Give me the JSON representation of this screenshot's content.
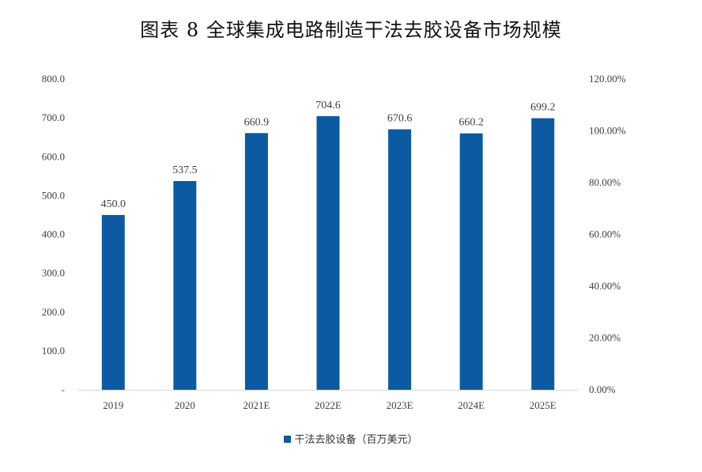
{
  "chart_data": {
    "type": "bar",
    "title": "图表 8  全球集成电路制造干法去胶设备市场规模",
    "categories": [
      "2019",
      "2020",
      "2021E",
      "2022E",
      "2023E",
      "2024E",
      "2025E"
    ],
    "series": [
      {
        "name": "干法去胶设备（百万美元）",
        "values": [
          450.0,
          537.5,
          660.9,
          704.6,
          670.6,
          660.2,
          699.2
        ],
        "color": "#0b5aa2"
      }
    ],
    "data_labels": [
      "450.0",
      "537.5",
      "660.9",
      "704.6",
      "670.6",
      "660.2",
      "699.2"
    ],
    "y_left": {
      "ylim": [
        0,
        800
      ],
      "ticks": [
        0,
        100,
        200,
        300,
        400,
        500,
        600,
        700,
        800
      ],
      "tick_labels": [
        "-",
        "100.0",
        "200.0",
        "300.0",
        "400.0",
        "500.0",
        "600.0",
        "700.0",
        "800.0"
      ]
    },
    "y_right": {
      "ylim": [
        0,
        120
      ],
      "ticks": [
        0,
        20,
        40,
        60,
        80,
        100,
        120
      ],
      "tick_labels": [
        "0.00%",
        "20.00%",
        "40.00%",
        "60.00%",
        "80.00%",
        "100.00%",
        "120.00%"
      ]
    },
    "grid": false,
    "legend_position": "bottom"
  }
}
